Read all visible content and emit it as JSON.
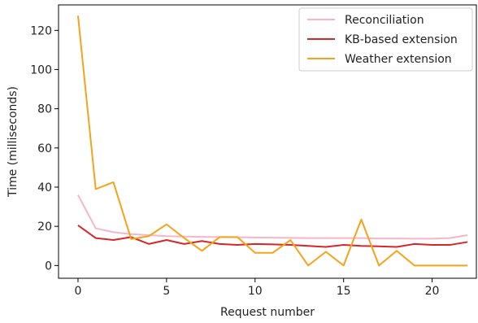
{
  "chart_data": {
    "type": "line",
    "title": "",
    "xlabel": "Request number",
    "ylabel": "Time (milliseconds)",
    "xlim": [
      -1.1,
      22.5
    ],
    "ylim": [
      -6.5,
      133
    ],
    "xticks": [
      0,
      5,
      10,
      15,
      20
    ],
    "yticks": [
      0,
      20,
      40,
      60,
      80,
      100,
      120
    ],
    "grid": false,
    "legend_position": "top-right",
    "x": [
      0,
      1,
      2,
      3,
      4,
      5,
      6,
      7,
      8,
      9,
      10,
      11,
      12,
      13,
      14,
      15,
      16,
      17,
      18,
      19,
      20,
      21,
      22
    ],
    "series": [
      {
        "name": "Reconciliation",
        "color": "#f7b6c8",
        "values": [
          36,
          19,
          17,
          16,
          15.5,
          15,
          14.8,
          14.6,
          14.5,
          14.4,
          14.3,
          14.2,
          14.1,
          14,
          14,
          14,
          14,
          13.8,
          13.8,
          13.7,
          13.7,
          14,
          15.5
        ]
      },
      {
        "name": "KB-based extension",
        "color": "#d62728",
        "values": [
          20.5,
          14,
          13,
          14.5,
          11,
          13,
          11,
          12.5,
          11,
          10.5,
          11,
          10.8,
          10.5,
          10,
          9.5,
          10.5,
          10,
          9.8,
          9.5,
          11,
          10.5,
          10.5,
          12
        ]
      },
      {
        "name": "Weather extension",
        "color": "#f5a31a",
        "values": [
          127.5,
          39,
          42.5,
          13.5,
          15,
          21,
          14,
          7.5,
          14.5,
          14.5,
          6.5,
          6.5,
          13,
          0,
          7,
          0,
          23.5,
          0,
          7.5,
          0,
          0,
          0,
          0
        ]
      }
    ]
  }
}
